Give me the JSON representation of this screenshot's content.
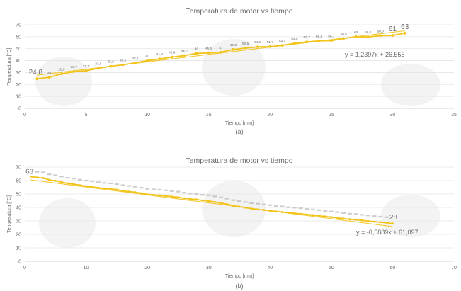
{
  "chart_data": [
    {
      "type": "line",
      "panel_label": "(a)",
      "title": "Temperatura de motor vs tiempo",
      "xlabel": "Tiempo [min]",
      "ylabel": "Temperatura [°C]",
      "xlim": [
        0,
        35
      ],
      "ylim": [
        0,
        70
      ],
      "xticks": [
        0,
        5,
        10,
        15,
        20,
        25,
        30,
        35
      ],
      "yticks": [
        0,
        10,
        20,
        30,
        40,
        50,
        60,
        70
      ],
      "grid": "horizontal",
      "line_color": "#f2c318",
      "trend_color": "#f2c318",
      "trendline": {
        "slope": 1.2397,
        "intercept": 26.555,
        "label": "y = 1,2397x + 26,555"
      },
      "series": [
        {
          "x": [
            1,
            2,
            3,
            4,
            5,
            6,
            7,
            8,
            9,
            10,
            11,
            12,
            13,
            14,
            15,
            16,
            17,
            18,
            19,
            20,
            21,
            22,
            23,
            24,
            25,
            26,
            27,
            28,
            29,
            30,
            31
          ],
          "values": [
            24.8,
            26,
            28.9,
            30.7,
            31.5,
            33.6,
            35.2,
            36.5,
            38.1,
            40,
            41.4,
            42.9,
            44.2,
            46,
            46.5,
            47,
            49.3,
            50.5,
            51.5,
            51.7,
            52.7,
            54.5,
            55.7,
            56.5,
            56.7,
            58.5,
            60,
            59.8,
            60.9,
            61,
            63
          ],
          "labels": [
            "24,8",
            "26",
            "28,9",
            "30,7",
            "31,5",
            "33,6",
            "35,2",
            "36,5",
            "38,1",
            "40",
            "41,4",
            "42,9",
            "44,2",
            "46",
            "46,5",
            "47",
            "49,3",
            "50,5",
            "51,5",
            "51,7",
            "52,7",
            "54,5",
            "55,7",
            "56,5",
            "56,7",
            "58,5",
            "60",
            "59,8",
            "60,9",
            "61",
            "63"
          ]
        }
      ]
    },
    {
      "type": "line",
      "panel_label": "(b)",
      "title": "Temperatura de motor vs tiempo",
      "xlabel": "Tiempo [min]",
      "ylabel": "Temperatura [°C]",
      "xlim": [
        0,
        70
      ],
      "ylim": [
        0,
        70
      ],
      "xticks": [
        0,
        10,
        20,
        30,
        40,
        50,
        60,
        70
      ],
      "yticks": [
        0,
        10,
        20,
        30,
        40,
        50,
        60,
        70
      ],
      "grid": "horizontal",
      "line_color": "#f2c318",
      "trend_color": "#f2c318",
      "trendline": {
        "slope": -0.5889,
        "intercept": 61.097,
        "label": "y = -0,5889x + 61,097"
      },
      "series": [
        {
          "x": [
            1,
            2,
            3,
            4,
            5,
            6,
            7,
            8,
            9,
            10,
            11,
            12,
            13,
            14,
            15,
            16,
            17,
            18,
            19,
            20,
            21,
            22,
            23,
            24,
            25,
            26,
            27,
            28,
            29,
            30,
            31,
            32,
            33,
            34,
            35,
            36,
            37,
            38,
            39,
            40,
            41,
            42,
            43,
            44,
            45,
            46,
            47,
            48,
            49,
            50,
            51,
            52,
            53,
            54,
            55,
            56,
            57,
            58,
            59,
            60
          ],
          "values": [
            63,
            62.3,
            61.9,
            60.5,
            59.8,
            58.9,
            57.9,
            57.3,
            56.5,
            55.8,
            55.3,
            54.6,
            54.1,
            53.8,
            53.2,
            52.4,
            51.8,
            51.3,
            50.5,
            49.7,
            49.3,
            49,
            48.6,
            48,
            47.6,
            46.8,
            46.3,
            45.9,
            45.2,
            44.8,
            44.1,
            43.3,
            42.4,
            41.3,
            40.6,
            39.9,
            39,
            38.6,
            38.1,
            37.5,
            37,
            36.6,
            36,
            35.7,
            35.2,
            34.7,
            34.3,
            33.8,
            33.3,
            32.8,
            32.3,
            31.7,
            31.2,
            30.9,
            30.4,
            29.9,
            29.4,
            29.0,
            28.6,
            28
          ],
          "labels": []
        }
      ],
      "end_labels": [
        "63",
        "28"
      ]
    }
  ]
}
